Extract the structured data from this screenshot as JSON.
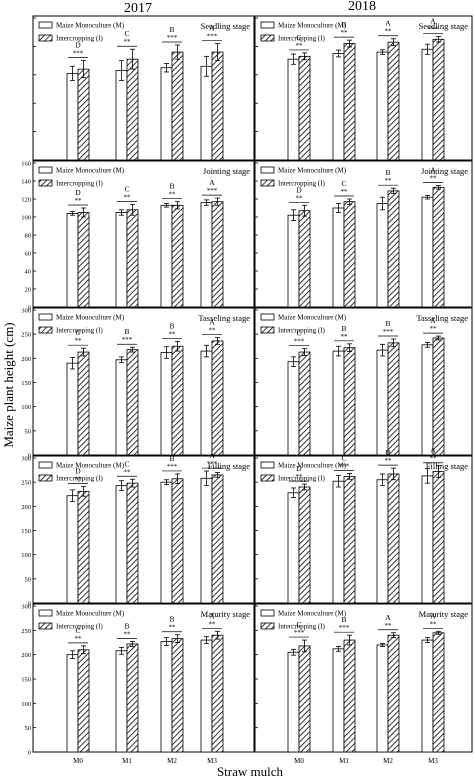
{
  "figure": {
    "column_titles": [
      "2017",
      "2018"
    ],
    "ylabel": "Maize plant height (cm)",
    "xlabel": "Straw mulch",
    "legend": [
      "Maize Monoculture (M)",
      "Intercropping (I)"
    ]
  },
  "chart_data": [
    {
      "type": "bar",
      "year": "2017",
      "title": "Seedling stage",
      "categories": [
        "M0",
        "M1",
        "M2",
        "M3"
      ],
      "series": [
        {
          "name": "Maize Monoculture (M)",
          "values": [
            30.5,
            31.5,
            32.5,
            33.0
          ],
          "errors": [
            2.5,
            3.5,
            1.5,
            3.5
          ]
        },
        {
          "name": "Intercropping (I)",
          "values": [
            32.0,
            35.5,
            38.0,
            38.0
          ],
          "errors": [
            3.0,
            3.5,
            2.5,
            3.0
          ]
        }
      ],
      "letters": [
        "D",
        "C",
        "B",
        "A"
      ],
      "significance": [
        "***",
        "**",
        "***",
        "***"
      ],
      "ylim": [
        0,
        50
      ],
      "yticks": [
        0,
        10,
        20,
        30,
        40,
        50
      ],
      "show_ticklabels": false
    },
    {
      "type": "bar",
      "year": "2018",
      "title": "Seedling stage",
      "categories": [
        "M0",
        "M1",
        "M2",
        "M3"
      ],
      "series": [
        {
          "name": "Maize Monoculture (M)",
          "values": [
            35.5,
            37.5,
            38.0,
            39.0
          ],
          "errors": [
            1.8,
            1.2,
            0.8,
            1.8
          ]
        },
        {
          "name": "Intercropping (I)",
          "values": [
            36.5,
            41.0,
            41.5,
            42.5
          ],
          "errors": [
            1.2,
            1.2,
            1.2,
            1.0
          ]
        }
      ],
      "letters": [
        "C",
        "B",
        "A",
        "A"
      ],
      "significance": [
        "**",
        "**",
        "**",
        "***"
      ],
      "ylim": [
        0,
        50
      ],
      "yticks": [
        0,
        10,
        20,
        30,
        40,
        50
      ],
      "show_ticklabels": false
    },
    {
      "type": "bar",
      "year": "2017",
      "title": "Jointing stage",
      "categories": [
        "M0",
        "M1",
        "M2",
        "M3"
      ],
      "series": [
        {
          "name": "Maize Monoculture (M)",
          "values": [
            104,
            105,
            113,
            116
          ],
          "errors": [
            2,
            3,
            2,
            3
          ]
        },
        {
          "name": "Intercropping (I)",
          "values": [
            105,
            108,
            113,
            117
          ],
          "errors": [
            5,
            6,
            4,
            4
          ]
        }
      ],
      "letters": [
        "D",
        "C",
        "B",
        "A"
      ],
      "significance": [
        "**",
        "**",
        "**",
        "***"
      ],
      "ylim": [
        0,
        160
      ],
      "yticks": [
        0,
        20,
        40,
        60,
        80,
        100,
        120,
        140,
        160
      ],
      "show_ticklabels": true
    },
    {
      "type": "bar",
      "year": "2018",
      "title": "Jointing stage",
      "categories": [
        "M0",
        "M1",
        "M2",
        "M3"
      ],
      "series": [
        {
          "name": "Maize Monoculture (M)",
          "values": [
            102,
            110,
            115,
            122
          ],
          "errors": [
            6,
            5,
            7,
            2
          ]
        },
        {
          "name": "Intercropping (I)",
          "values": [
            107,
            117,
            129,
            133
          ],
          "errors": [
            6,
            3,
            3,
            2
          ]
        }
      ],
      "letters": [
        "D",
        "C",
        "B",
        "A"
      ],
      "significance": [
        "**",
        "**",
        "**",
        "**"
      ],
      "ylim": [
        0,
        160
      ],
      "yticks": [
        0,
        20,
        40,
        60,
        80,
        100,
        120,
        140,
        160
      ],
      "show_ticklabels": false
    },
    {
      "type": "bar",
      "year": "2017",
      "title": "Tasseling stage",
      "categories": [
        "M0",
        "M1",
        "M2",
        "M3"
      ],
      "series": [
        {
          "name": "Maize Monoculture (M)",
          "values": [
            190,
            197,
            212,
            215
          ],
          "errors": [
            12,
            6,
            12,
            12
          ]
        },
        {
          "name": "Intercropping (I)",
          "values": [
            213,
            218,
            225,
            236
          ],
          "errors": [
            8,
            5,
            10,
            7
          ]
        }
      ],
      "letters": [
        "C",
        "B",
        "B",
        "A"
      ],
      "significance": [
        "**",
        "***",
        "**",
        "**"
      ],
      "ylim": [
        0,
        300
      ],
      "yticks": [
        0,
        50,
        100,
        150,
        200,
        250,
        300
      ],
      "show_ticklabels": true
    },
    {
      "type": "bar",
      "year": "2018",
      "title": "Tasseling stage",
      "categories": [
        "M0",
        "M1",
        "M2",
        "M3"
      ],
      "series": [
        {
          "name": "Maize Monoculture (M)",
          "values": [
            193,
            215,
            217,
            228
          ],
          "errors": [
            10,
            10,
            12,
            5
          ]
        },
        {
          "name": "Intercropping (I)",
          "values": [
            213,
            222,
            232,
            242
          ],
          "errors": [
            7,
            8,
            8,
            4
          ]
        }
      ],
      "letters": [
        "C",
        "B",
        "B",
        "A"
      ],
      "significance": [
        "***",
        "**",
        "***",
        "**"
      ],
      "ylim": [
        0,
        300
      ],
      "yticks": [
        0,
        50,
        100,
        150,
        200,
        250,
        300
      ],
      "show_ticklabels": false
    },
    {
      "type": "bar",
      "year": "2017",
      "title": "Filling stage",
      "categories": [
        "M0",
        "M1",
        "M2",
        "M3"
      ],
      "series": [
        {
          "name": "Maize Monoculture (M)",
          "values": [
            222,
            243,
            250,
            258
          ],
          "errors": [
            12,
            10,
            5,
            15
          ]
        },
        {
          "name": "Intercropping (I)",
          "values": [
            231,
            248,
            257,
            265
          ],
          "errors": [
            10,
            8,
            10,
            5
          ]
        }
      ],
      "letters": [
        "D",
        "C",
        "B",
        "A"
      ],
      "significance": [
        "**",
        "**",
        "***",
        "***"
      ],
      "ylim": [
        0,
        300
      ],
      "yticks": [
        0,
        50,
        100,
        150,
        200,
        250,
        300
      ],
      "show_ticklabels": true
    },
    {
      "type": "bar",
      "year": "2018",
      "title": "Filling stage",
      "categories": [
        "M0",
        "M1",
        "M2",
        "M3"
      ],
      "series": [
        {
          "name": "Maize Monoculture (M)",
          "values": [
            228,
            252,
            255,
            263
          ],
          "errors": [
            10,
            12,
            12,
            15
          ]
        },
        {
          "name": "Intercropping (I)",
          "values": [
            240,
            262,
            267,
            272
          ],
          "errors": [
            6,
            6,
            12,
            12
          ]
        }
      ],
      "letters": [
        "D",
        "C",
        "B",
        "A"
      ],
      "significance": [
        "**",
        "***",
        "**",
        "**"
      ],
      "ylim": [
        0,
        300
      ],
      "yticks": [
        0,
        50,
        100,
        150,
        200,
        250,
        300
      ],
      "show_ticklabels": false
    },
    {
      "type": "bar",
      "year": "2017",
      "title": "Maturity stage",
      "categories": [
        "M0",
        "M1",
        "M2",
        "M3"
      ],
      "series": [
        {
          "name": "Maize Monoculture (M)",
          "values": [
            200,
            208,
            227,
            230
          ],
          "errors": [
            8,
            7,
            8,
            7
          ]
        },
        {
          "name": "Intercropping (I)",
          "values": [
            210,
            222,
            233,
            240
          ],
          "errors": [
            8,
            5,
            8,
            8
          ]
        }
      ],
      "letters": [
        "C",
        "B",
        "B",
        "A"
      ],
      "significance": [
        "**",
        "**",
        "**",
        "**"
      ],
      "ylim": [
        0,
        300
      ],
      "yticks": [
        0,
        50,
        100,
        150,
        200,
        250,
        300
      ],
      "show_ticklabels": true
    },
    {
      "type": "bar",
      "year": "2018",
      "title": "Maturity stage",
      "categories": [
        "M0",
        "M1",
        "M2",
        "M3"
      ],
      "series": [
        {
          "name": "Maize Monoculture (M)",
          "values": [
            205,
            212,
            220,
            230
          ],
          "errors": [
            6,
            5,
            3,
            5
          ]
        },
        {
          "name": "Intercropping (I)",
          "values": [
            218,
            230,
            240,
            245
          ],
          "errors": [
            12,
            10,
            5,
            3
          ]
        }
      ],
      "letters": [
        "C",
        "B",
        "A",
        "A"
      ],
      "significance": [
        "***",
        "***",
        "**",
        "**"
      ],
      "ylim": [
        0,
        300
      ],
      "yticks": [
        0,
        50,
        100,
        150,
        200,
        250,
        300
      ],
      "show_ticklabels": false
    }
  ]
}
